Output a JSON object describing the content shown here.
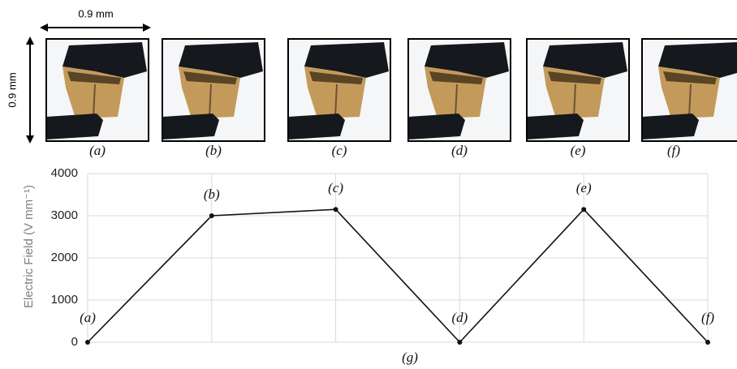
{
  "figure": {
    "scale_labels": [
      "0.9 mm",
      "0.9 mm"
    ],
    "panel_labels": [
      "(a)",
      "(b)",
      "(c)",
      "(d)",
      "(e)",
      "(f)"
    ],
    "chart_label": "(g)"
  },
  "chart_data": {
    "type": "line",
    "y_label": "Electric Field (V mm⁻¹)",
    "categories": [
      "(a)",
      "(b)",
      "(c)",
      "(d)",
      "(e)",
      "(f)"
    ],
    "values": [
      0,
      3000,
      3150,
      0,
      3150,
      0
    ],
    "color": "#111111",
    "ylim": [
      0,
      4000
    ],
    "yticks": [
      0,
      1000,
      2000,
      3000,
      4000
    ],
    "grid": true
  }
}
